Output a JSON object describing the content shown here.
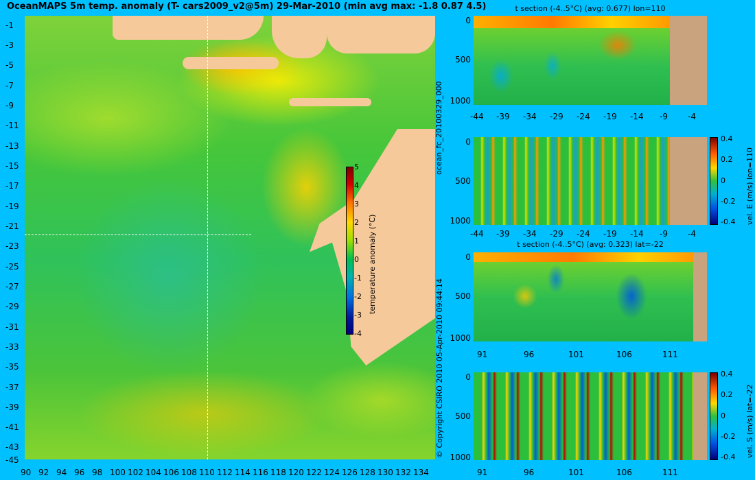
{
  "map": {
    "title": "OceanMAPS 5m temp. anomaly (T- cars2009_v2@5m) 29-Mar-2010 (min avg max: -1.8 0.87 4.5)",
    "lat_ticks": [
      "-1",
      "-3",
      "-5",
      "-7",
      "-9",
      "-11",
      "-13",
      "-15",
      "-17",
      "-19",
      "-21",
      "-23",
      "-25",
      "-27",
      "-29",
      "-31",
      "-33",
      "-35",
      "-37",
      "-39",
      "-41",
      "-43",
      "-45"
    ],
    "lon_ticks": [
      "90",
      "92",
      "94",
      "96",
      "98",
      "100",
      "102",
      "104",
      "106",
      "108",
      "110",
      "112",
      "114",
      "116",
      "118",
      "120",
      "122",
      "124",
      "126",
      "128",
      "130",
      "132",
      "134"
    ],
    "colorbar": {
      "label": "temperature anomaly (°C)",
      "ticks": [
        "5",
        "4",
        "3",
        "2",
        "1",
        "0",
        "-1",
        "-2",
        "-3",
        "-4"
      ]
    },
    "copyright": "© Copyright CSIRO 2010   05-Apr-2010 09:44:14",
    "run_id": "ocean_fc_20100329_000"
  },
  "sections": [
    {
      "title": "t section (-4..5°C) (avg: 0.677) lon=110",
      "y_ticks": [
        "0",
        "500",
        "1000"
      ],
      "x_ticks": [
        "-44",
        "-39",
        "-34",
        "-29",
        "-24",
        "-19",
        "-14",
        "-9",
        "-4"
      ]
    },
    {
      "title": "",
      "y_ticks": [
        "0",
        "500",
        "1000"
      ],
      "x_ticks": [
        "-44",
        "-39",
        "-34",
        "-29",
        "-24",
        "-19",
        "-14",
        "-9",
        "-4"
      ],
      "colorbar_label": "vel. E (m/s) lon=110",
      "colorbar_ticks": [
        "0.4",
        "0.2",
        "0",
        "-0.2",
        "-0.4"
      ]
    },
    {
      "title": "t section (-4..5°C) (avg: 0.323) lat=-22",
      "y_ticks": [
        "0",
        "500",
        "1000"
      ],
      "x_ticks": [
        "91",
        "96",
        "101",
        "106",
        "111"
      ]
    },
    {
      "title": "",
      "y_ticks": [
        "0",
        "500",
        "1000"
      ],
      "x_ticks": [
        "91",
        "96",
        "101",
        "106",
        "111"
      ],
      "colorbar_label": "vel. S (m/s) lat=-22",
      "colorbar_ticks": [
        "0.4",
        "0.2",
        "0",
        "-0.2",
        "-0.4"
      ]
    }
  ]
}
